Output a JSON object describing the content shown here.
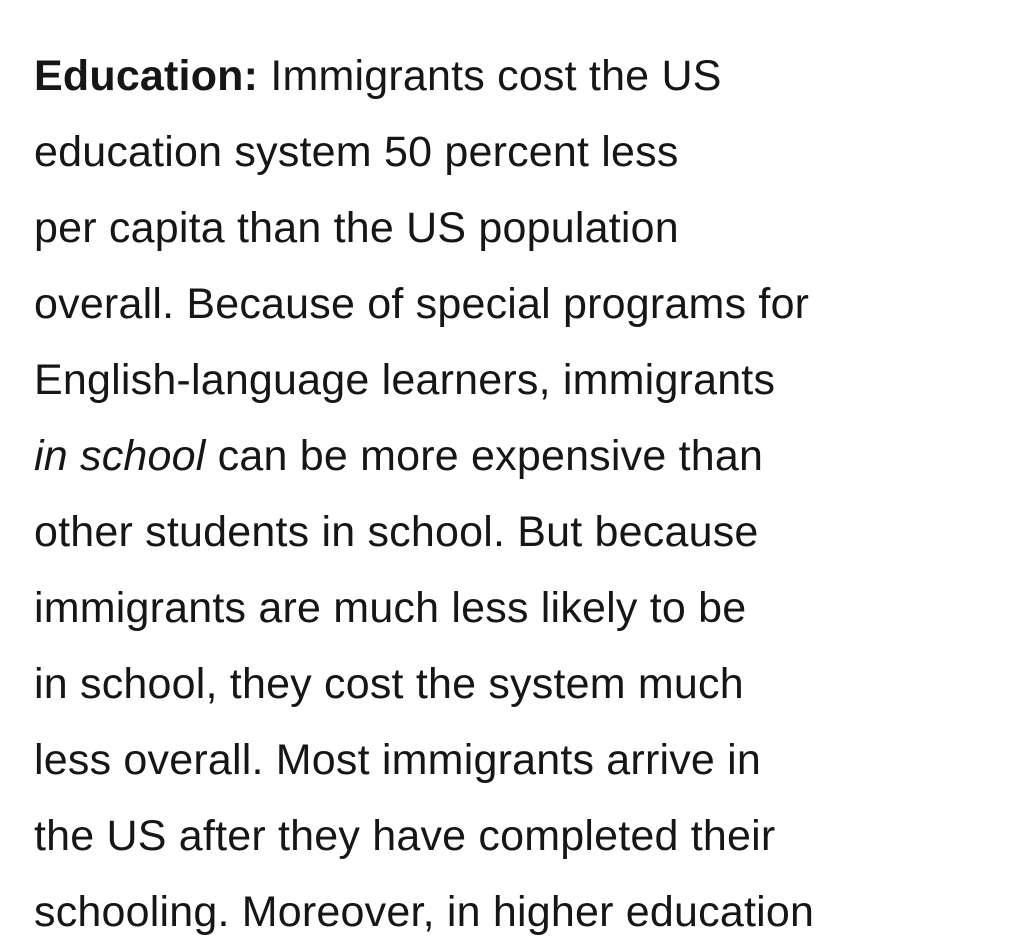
{
  "paragraph": {
    "heading": "Education:",
    "lines": [
      " Immigrants cost the US",
      "education system 50 percent less",
      "per capita than the US population",
      "overall. Because of special programs for",
      "English-language learners, immigrants",
      " can be more expensive than",
      "other students in school. But because",
      "immigrants are much less likely to be",
      "in school, they cost the system much",
      "less overall. Most immigrants arrive in",
      "the US after they have completed their",
      "schooling. Moreover, in higher education"
    ],
    "emphasis": "in school"
  }
}
